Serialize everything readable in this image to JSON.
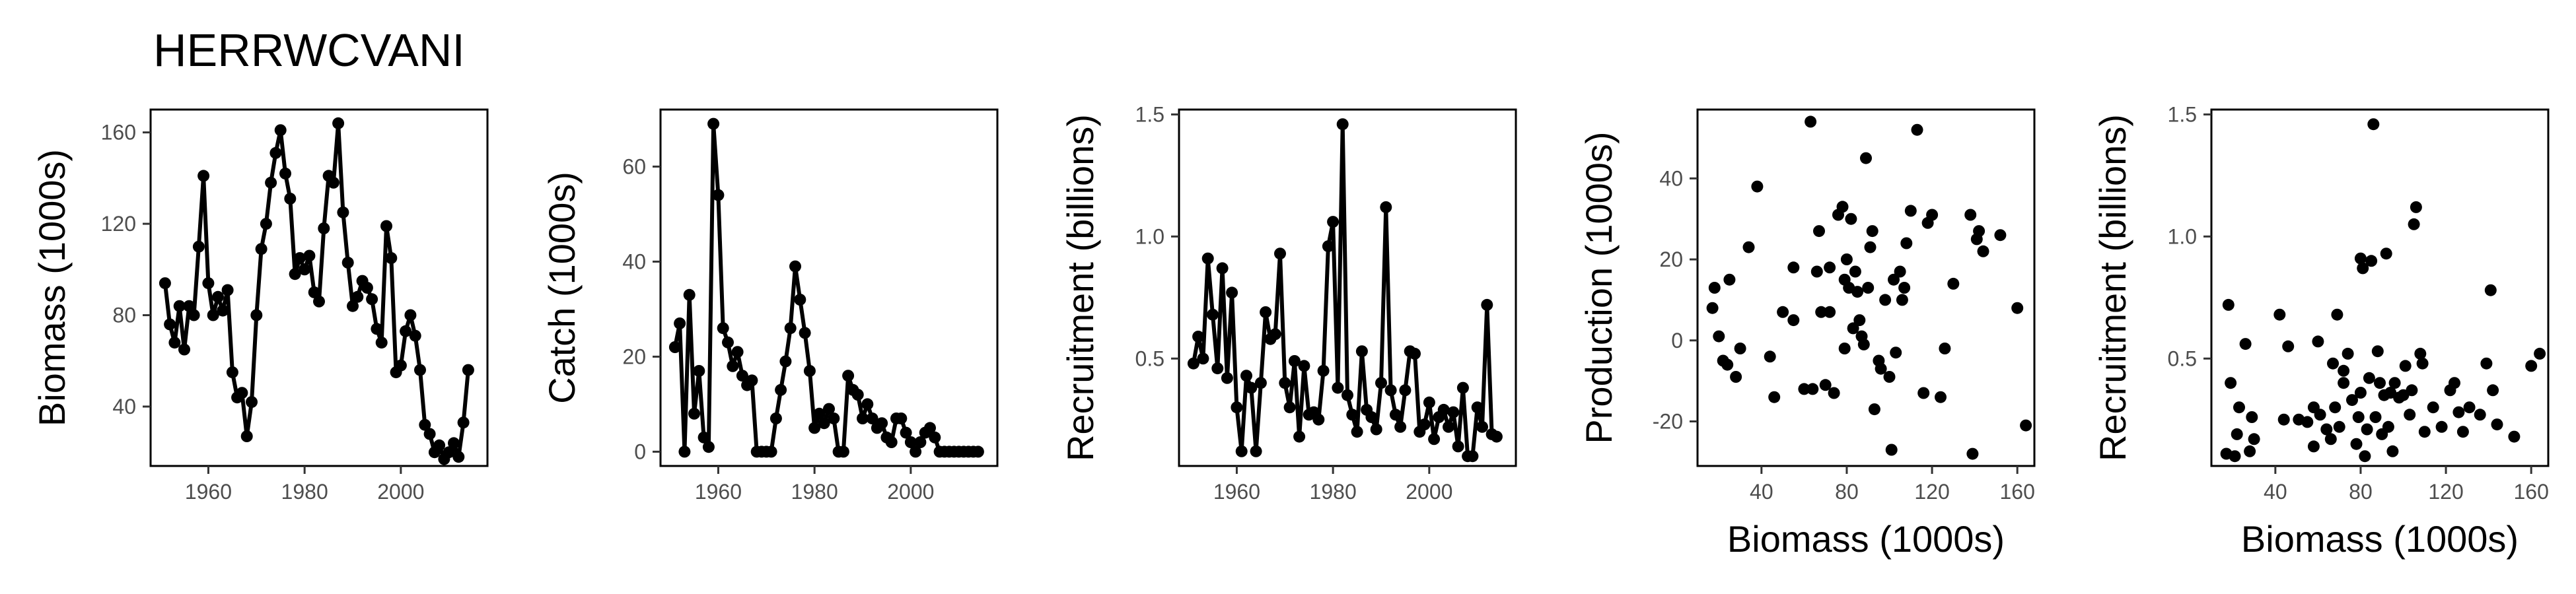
{
  "title": "HERRWCVANI",
  "chart_data": [
    {
      "type": "line",
      "xlabel": "",
      "ylabel": "Biomass (1000s)",
      "xlim": [
        1948,
        2018
      ],
      "ylim": [
        14,
        170
      ],
      "xticks": [
        1960,
        1980,
        2000
      ],
      "yticks": [
        40,
        80,
        120,
        160
      ],
      "x": [
        1951,
        1952,
        1953,
        1954,
        1955,
        1956,
        1957,
        1958,
        1959,
        1960,
        1961,
        1962,
        1963,
        1964,
        1965,
        1966,
        1967,
        1968,
        1969,
        1970,
        1971,
        1972,
        1973,
        1974,
        1975,
        1976,
        1977,
        1978,
        1979,
        1980,
        1981,
        1982,
        1983,
        1984,
        1985,
        1986,
        1987,
        1988,
        1989,
        1990,
        1991,
        1992,
        1993,
        1994,
        1995,
        1996,
        1997,
        1998,
        1999,
        2000,
        2001,
        2002,
        2003,
        2004,
        2005,
        2006,
        2007,
        2008,
        2009,
        2010,
        2011,
        2012,
        2013,
        2014
      ],
      "values": [
        94,
        76,
        68,
        84,
        65,
        84,
        80,
        110,
        141,
        94,
        80,
        88,
        82,
        91,
        55,
        44,
        46,
        27,
        42,
        80,
        109,
        120,
        138,
        151,
        161,
        142,
        131,
        98,
        105,
        100,
        106,
        90,
        86,
        118,
        141,
        138,
        164,
        125,
        103,
        84,
        88,
        95,
        92,
        87,
        74,
        68,
        119,
        105,
        55,
        58,
        73,
        80,
        71,
        56,
        32,
        28,
        20,
        23,
        17,
        20,
        24,
        18,
        33,
        56
      ]
    },
    {
      "type": "line",
      "xlabel": "",
      "ylabel": "Catch (1000s)",
      "xlim": [
        1948,
        2018
      ],
      "ylim": [
        -3,
        72
      ],
      "xticks": [
        1960,
        1980,
        2000
      ],
      "yticks": [
        0,
        20,
        40,
        60
      ],
      "x": [
        1951,
        1952,
        1953,
        1954,
        1955,
        1956,
        1957,
        1958,
        1959,
        1960,
        1961,
        1962,
        1963,
        1964,
        1965,
        1966,
        1967,
        1968,
        1969,
        1970,
        1971,
        1972,
        1973,
        1974,
        1975,
        1976,
        1977,
        1978,
        1979,
        1980,
        1981,
        1982,
        1983,
        1984,
        1985,
        1986,
        1987,
        1988,
        1989,
        1990,
        1991,
        1992,
        1993,
        1994,
        1995,
        1996,
        1997,
        1998,
        1999,
        2000,
        2001,
        2002,
        2003,
        2004,
        2005,
        2006,
        2007,
        2008,
        2009,
        2010,
        2011,
        2012,
        2013,
        2014
      ],
      "values": [
        22,
        27,
        0,
        33,
        8,
        17,
        3,
        1,
        69,
        54,
        26,
        23,
        18,
        21,
        16,
        14,
        15,
        0,
        0,
        0,
        0,
        7,
        13,
        19,
        26,
        39,
        32,
        25,
        17,
        5,
        8,
        6,
        9,
        7,
        0,
        0,
        16,
        13,
        12,
        7,
        10,
        7,
        5,
        6,
        3,
        2,
        7,
        7,
        4,
        2,
        0,
        2,
        4,
        5,
        3,
        0,
        0,
        0,
        0,
        0,
        0,
        0,
        0,
        0
      ]
    },
    {
      "type": "line",
      "xlabel": "",
      "ylabel": "Recruitment (billions)",
      "xlim": [
        1948,
        2018
      ],
      "ylim": [
        0.06,
        1.52
      ],
      "xticks": [
        1960,
        1980,
        2000
      ],
      "yticks": [
        0.5,
        1.0,
        1.5
      ],
      "yticklabels": [
        "0.5",
        "1.0",
        "1.5"
      ],
      "x": [
        1951,
        1952,
        1953,
        1954,
        1955,
        1956,
        1957,
        1958,
        1959,
        1960,
        1961,
        1962,
        1963,
        1964,
        1965,
        1966,
        1967,
        1968,
        1969,
        1970,
        1971,
        1972,
        1973,
        1974,
        1975,
        1976,
        1977,
        1978,
        1979,
        1980,
        1981,
        1982,
        1983,
        1984,
        1985,
        1986,
        1987,
        1988,
        1989,
        1990,
        1991,
        1992,
        1993,
        1994,
        1995,
        1996,
        1997,
        1998,
        1999,
        2000,
        2001,
        2002,
        2003,
        2004,
        2005,
        2006,
        2007,
        2008,
        2009,
        2010,
        2011,
        2012,
        2013,
        2014
      ],
      "values": [
        0.48,
        0.59,
        0.5,
        0.91,
        0.68,
        0.46,
        0.87,
        0.42,
        0.77,
        0.3,
        0.12,
        0.43,
        0.38,
        0.12,
        0.4,
        0.69,
        0.58,
        0.6,
        0.93,
        0.4,
        0.3,
        0.49,
        0.18,
        0.47,
        0.27,
        0.28,
        0.25,
        0.45,
        0.96,
        1.06,
        0.38,
        1.46,
        0.35,
        0.27,
        0.2,
        0.53,
        0.29,
        0.26,
        0.21,
        0.4,
        1.12,
        0.37,
        0.27,
        0.22,
        0.37,
        0.53,
        0.52,
        0.2,
        0.23,
        0.32,
        0.17,
        0.26,
        0.29,
        0.22,
        0.28,
        0.14,
        0.38,
        0.1,
        0.1,
        0.3,
        0.22,
        0.72,
        0.19,
        0.18
      ]
    },
    {
      "type": "scatter",
      "xlabel": "Biomass (1000s)",
      "ylabel": "Production (1000s)",
      "xlim": [
        10,
        168
      ],
      "ylim": [
        -31,
        57
      ],
      "xticks": [
        40,
        80,
        120,
        160
      ],
      "yticks": [
        -20,
        0,
        20,
        40
      ],
      "x": [
        17,
        18,
        20,
        22,
        24,
        25,
        28,
        30,
        34,
        38,
        44,
        46,
        50,
        55,
        55,
        60,
        63,
        64,
        66,
        67,
        68,
        70,
        72,
        72,
        74,
        76,
        78,
        79,
        79,
        80,
        81,
        82,
        83,
        84,
        85,
        86,
        87,
        88,
        89,
        90,
        91,
        92,
        93,
        95,
        96,
        98,
        100,
        101,
        102,
        103,
        105,
        106,
        107,
        108,
        110,
        113,
        116,
        118,
        120,
        124,
        126,
        130,
        138,
        139,
        141,
        142,
        144,
        152,
        160,
        164
      ],
      "values": [
        8,
        13,
        1,
        -5,
        -6,
        15,
        -9,
        -2,
        23,
        38,
        -4,
        -14,
        7,
        5,
        18,
        -12,
        54,
        -12,
        17,
        27,
        7,
        -11,
        7,
        18,
        -13,
        31,
        33,
        15,
        -2,
        20,
        13,
        30,
        3,
        17,
        12,
        5,
        1,
        -1,
        45,
        13,
        23,
        27,
        -17,
        -5,
        -7,
        10,
        -9,
        -27,
        15,
        -3,
        17,
        10,
        13,
        24,
        32,
        52,
        -13,
        29,
        31,
        -14,
        -2,
        14,
        31,
        -28,
        25,
        27,
        22,
        26,
        8,
        -21
      ]
    },
    {
      "type": "scatter",
      "xlabel": "Biomass (1000s)",
      "ylabel": "Recruitment (billions)",
      "xlim": [
        10,
        168
      ],
      "ylim": [
        0.06,
        1.52
      ],
      "xticks": [
        40,
        80,
        120,
        160
      ],
      "yticks": [
        0.5,
        1.0,
        1.5
      ],
      "yticklabels": [
        "0.5",
        "1.0",
        "1.5"
      ],
      "x": [
        17,
        18,
        19,
        21,
        22,
        23,
        26,
        28,
        29,
        30,
        42,
        44,
        46,
        51,
        55,
        58,
        58,
        60,
        61,
        64,
        66,
        67,
        68,
        69,
        70,
        72,
        72,
        74,
        76,
        78,
        79,
        80,
        80,
        81,
        82,
        83,
        84,
        85,
        86,
        87,
        88,
        89,
        90,
        91,
        92,
        93,
        94,
        95,
        96,
        98,
        100,
        101,
        103,
        104,
        105,
        106,
        108,
        109,
        110,
        114,
        118,
        122,
        124,
        126,
        128,
        131,
        136,
        139,
        141,
        142,
        144,
        152,
        160,
        164
      ],
      "values": [
        0.11,
        0.72,
        0.4,
        0.1,
        0.19,
        0.3,
        0.56,
        0.12,
        0.26,
        0.17,
        0.68,
        0.25,
        0.55,
        0.25,
        0.24,
        0.14,
        0.3,
        0.57,
        0.27,
        0.21,
        0.17,
        0.48,
        0.3,
        0.68,
        0.22,
        0.4,
        0.45,
        0.52,
        0.33,
        0.15,
        0.26,
        0.36,
        0.91,
        0.87,
        0.1,
        0.21,
        0.42,
        0.9,
        1.46,
        0.26,
        0.53,
        0.4,
        0.19,
        0.35,
        0.93,
        0.22,
        0.36,
        0.12,
        0.4,
        0.34,
        0.35,
        0.47,
        0.27,
        0.37,
        1.05,
        1.12,
        0.52,
        0.48,
        0.2,
        0.3,
        0.22,
        0.37,
        0.4,
        0.28,
        0.2,
        0.3,
        0.27,
        0.48,
        0.78,
        0.37,
        0.23,
        0.18,
        0.47,
        0.52
      ]
    }
  ]
}
